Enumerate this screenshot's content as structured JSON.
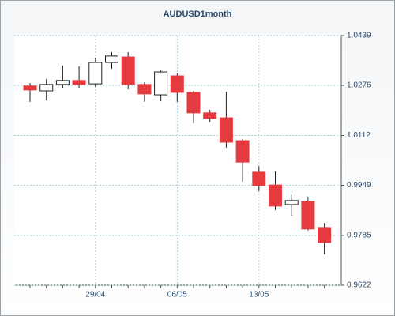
{
  "chart_data": {
    "type": "candlestick",
    "title": "AUDUSD1month",
    "categories": [
      null,
      null,
      null,
      null,
      "29/04",
      null,
      null,
      null,
      null,
      "06/05",
      null,
      null,
      null,
      null,
      "13/05",
      null,
      null,
      null,
      null
    ],
    "open": [
      1.0274,
      1.0258,
      1.0279,
      1.0292,
      1.0281,
      1.0351,
      1.0369,
      1.0279,
      1.0245,
      1.0307,
      1.0253,
      1.0186,
      1.017,
      1.0095,
      0.9992,
      0.995,
      0.9886,
      0.9896,
      0.9811
    ],
    "high": [
      1.0284,
      1.0297,
      1.0341,
      1.0338,
      1.0367,
      1.0385,
      1.0385,
      1.0286,
      1.0325,
      1.0315,
      1.0258,
      1.0196,
      1.0255,
      1.01,
      1.0012,
      0.9995,
      0.9919,
      0.9912,
      0.9826
    ],
    "low": [
      1.0222,
      1.0227,
      1.0266,
      1.0266,
      1.0271,
      1.033,
      1.0263,
      1.0222,
      1.0224,
      1.0222,
      1.0152,
      1.0155,
      1.0072,
      0.9961,
      0.993,
      0.9868,
      0.985,
      0.9801,
      0.9723
    ],
    "close": [
      1.0261,
      1.0279,
      1.0292,
      1.0279,
      1.0351,
      1.0372,
      1.0279,
      1.0248,
      1.032,
      1.0253,
      1.0186,
      1.0168,
      1.009,
      1.0025,
      0.9948,
      0.9881,
      0.9899,
      0.9806,
      0.9762
    ],
    "up_color": "#ffffff",
    "down_color": "#e53a3f",
    "ylim": [
      0.9622,
      1.0439
    ],
    "yticks": [
      0.9622,
      0.9785,
      0.9949,
      1.0112,
      1.0276,
      1.0439
    ],
    "grid": true
  }
}
